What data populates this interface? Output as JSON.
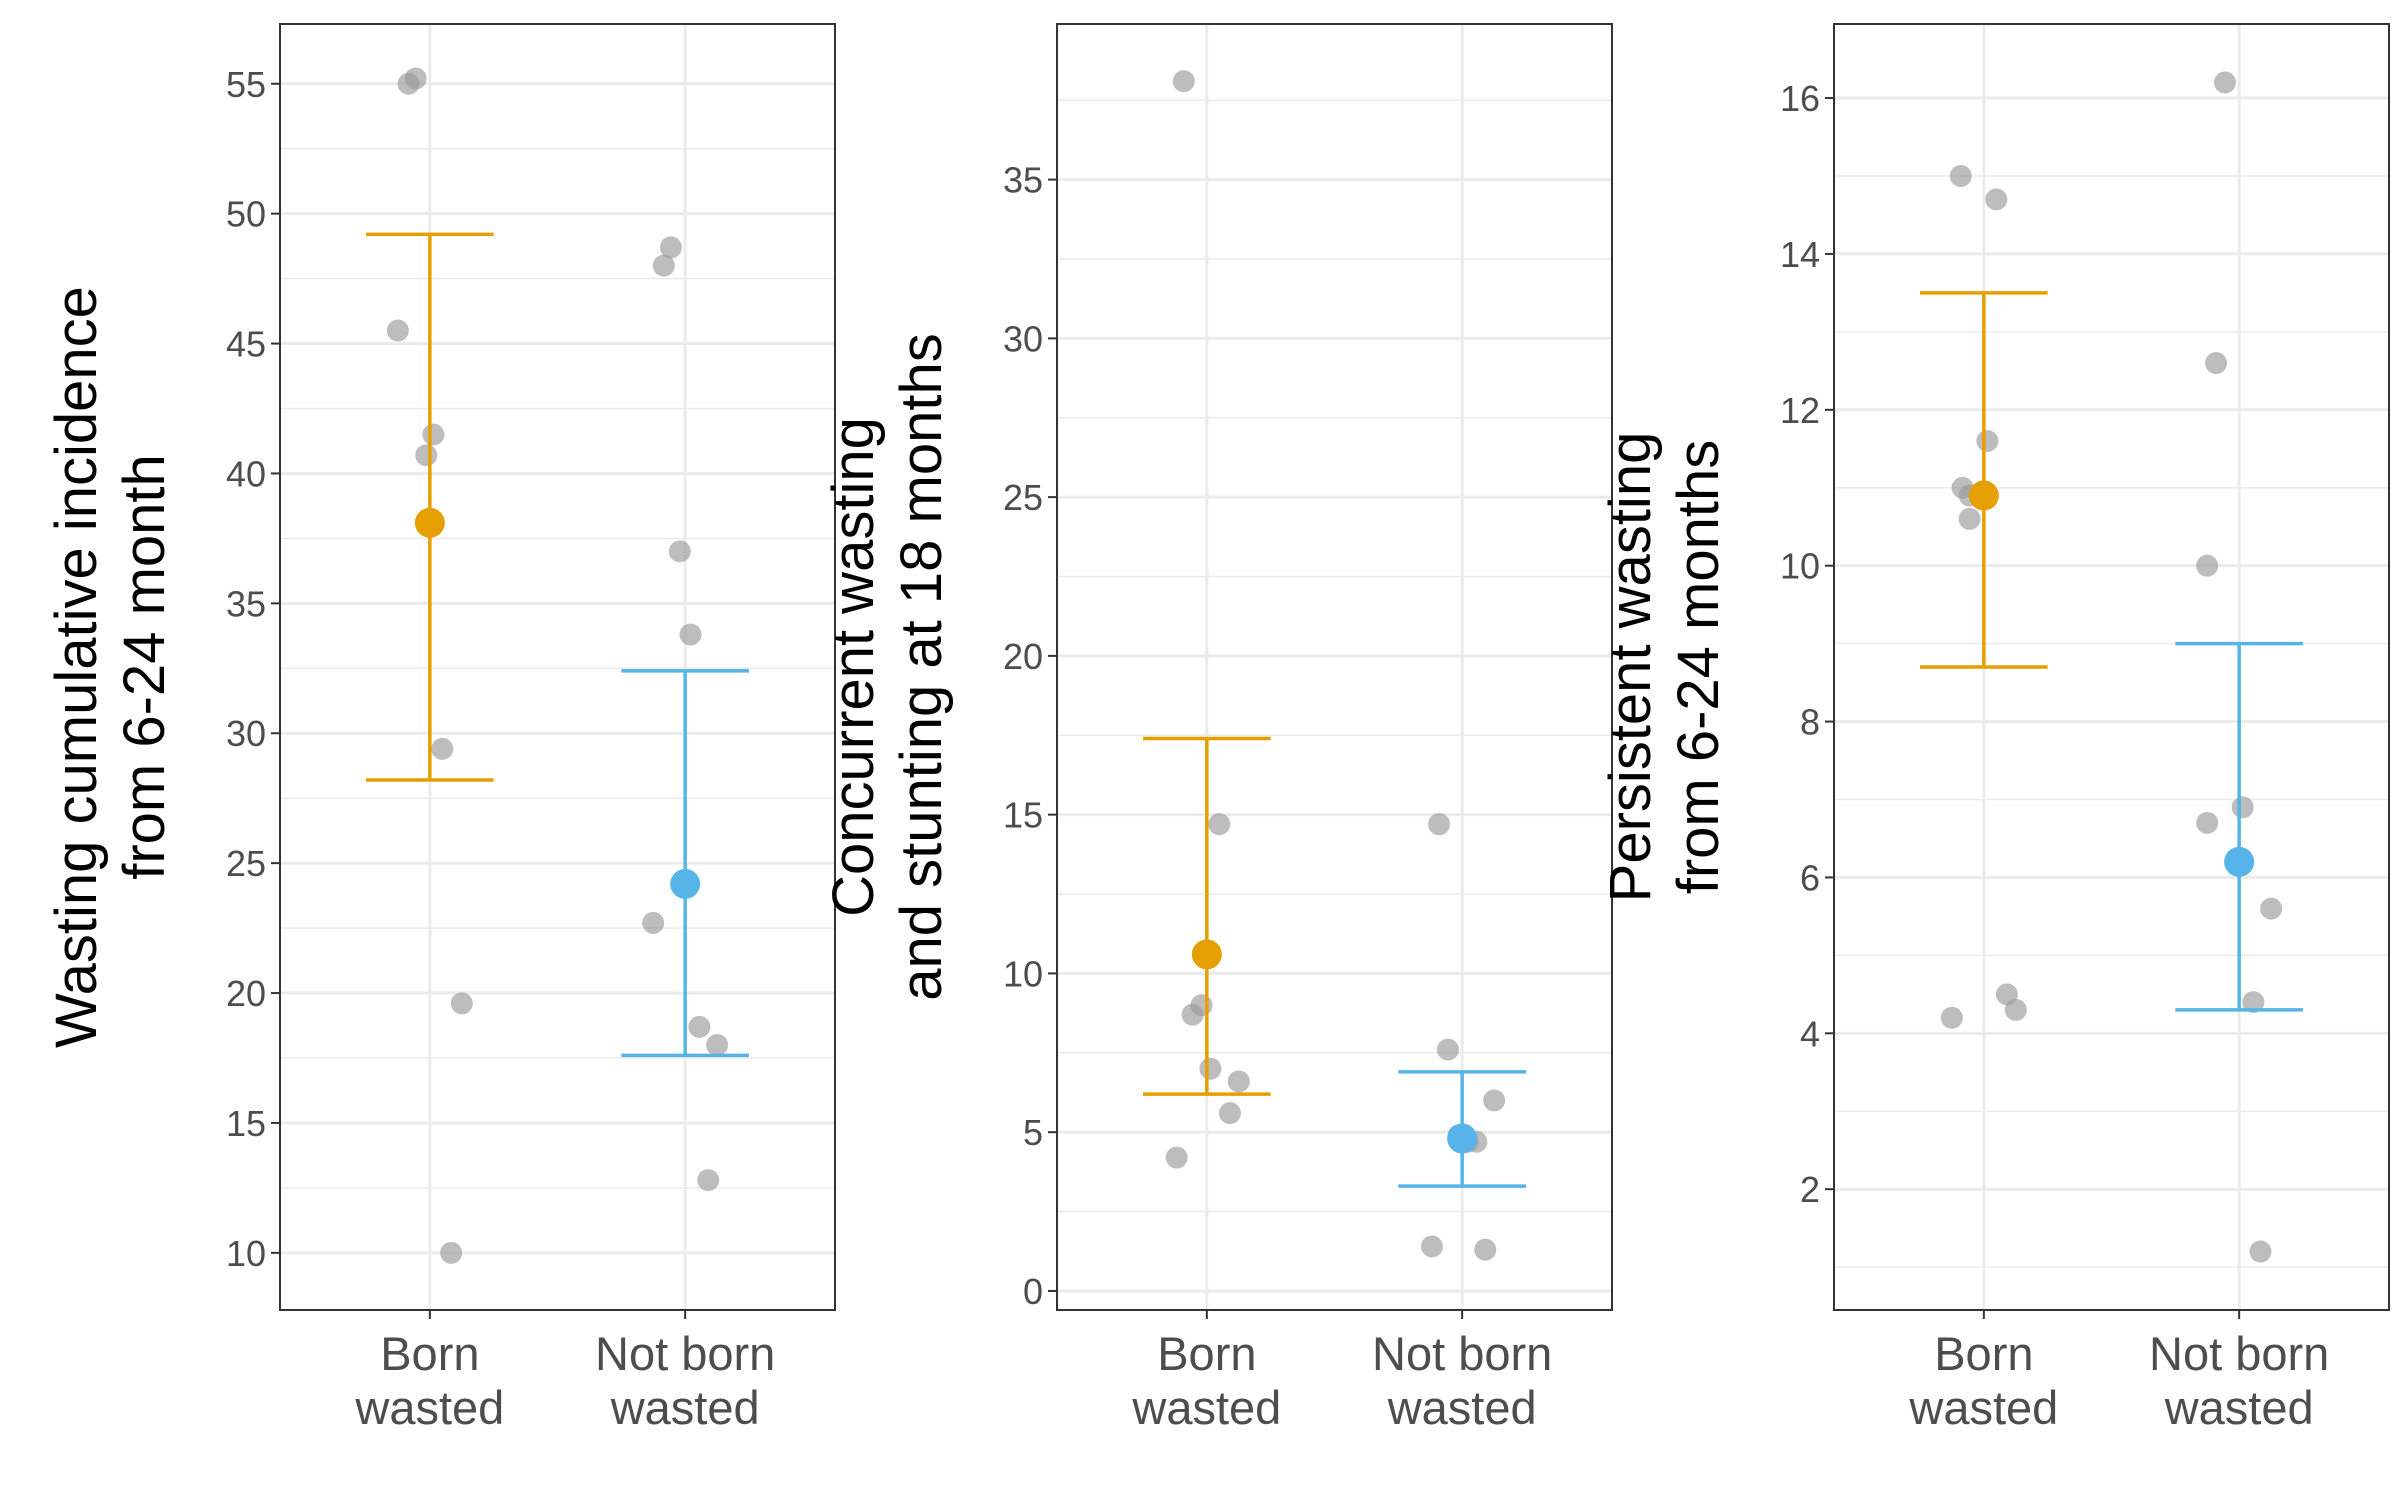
{
  "colors": {
    "born_wasted": "#E69F00",
    "not_born_wasted": "#56B4E9",
    "points": "#999999"
  },
  "chart_data": [
    {
      "type": "scatter",
      "categories": [
        "Born\nwasted",
        "Not born\nwasted"
      ],
      "ylabel": "Wasting cumulative incidence\nfrom 6-24 month",
      "xlabel": "",
      "ylim": [
        7.8,
        57.3
      ],
      "yticks": [
        10,
        15,
        20,
        25,
        30,
        35,
        40,
        45,
        50,
        55
      ],
      "ytick_labels": [
        "10",
        "15",
        "20",
        "25",
        "30",
        "35",
        "40",
        "45",
        "50",
        "55"
      ],
      "grid": true,
      "series": [
        {
          "category": 0,
          "estimate": 38.1,
          "ci_lower": 28.2,
          "ci_upper": 49.2,
          "color": "#E69F00",
          "points": [
            [
              -0.12,
              55.0
            ],
            [
              -0.08,
              55.2
            ],
            [
              -0.18,
              45.5
            ],
            [
              0.02,
              41.5
            ],
            [
              -0.02,
              40.7
            ],
            [
              0.07,
              29.4
            ],
            [
              0.18,
              19.6
            ],
            [
              0.12,
              10.0
            ]
          ]
        },
        {
          "category": 1,
          "estimate": 24.2,
          "ci_lower": 17.6,
          "ci_upper": 32.4,
          "color": "#56B4E9",
          "points": [
            [
              -0.12,
              48.0
            ],
            [
              -0.08,
              48.7
            ],
            [
              -0.03,
              37.0
            ],
            [
              0.03,
              33.8
            ],
            [
              -0.18,
              22.7
            ],
            [
              0.08,
              18.7
            ],
            [
              0.18,
              18.0
            ],
            [
              0.13,
              12.8
            ]
          ]
        }
      ]
    },
    {
      "type": "scatter",
      "categories": [
        "Born\nwasted",
        "Not born\nwasted"
      ],
      "ylabel": "Concurrent wasting\nand stunting at 18 months",
      "xlabel": "",
      "ylim": [
        -0.6,
        39.9
      ],
      "yticks": [
        0,
        5,
        10,
        15,
        20,
        25,
        30,
        35
      ],
      "ytick_labels": [
        "0",
        "5",
        "10",
        "15",
        "20",
        "25",
        "30",
        "35"
      ],
      "grid": true,
      "series": [
        {
          "category": 0,
          "estimate": 10.6,
          "ci_lower": 6.2,
          "ci_upper": 17.4,
          "color": "#E69F00",
          "points": [
            [
              -0.13,
              38.1
            ],
            [
              0.07,
              14.7
            ],
            [
              -0.03,
              9.0
            ],
            [
              -0.08,
              8.7
            ],
            [
              0.18,
              6.6
            ],
            [
              0.02,
              7.0
            ],
            [
              0.13,
              5.6
            ],
            [
              -0.17,
              4.2
            ]
          ]
        },
        {
          "category": 1,
          "estimate": 4.8,
          "ci_lower": 3.3,
          "ci_upper": 6.9,
          "color": "#56B4E9",
          "points": [
            [
              -0.13,
              14.7
            ],
            [
              -0.08,
              7.6
            ],
            [
              0.18,
              6.0
            ],
            [
              0.08,
              4.7
            ],
            [
              -0.02,
              4.9
            ],
            [
              0.03,
              4.7
            ],
            [
              -0.17,
              1.4
            ],
            [
              0.13,
              1.3
            ]
          ]
        }
      ]
    },
    {
      "type": "scatter",
      "categories": [
        "Born\nwasted",
        "Not born\nwasted"
      ],
      "ylabel": "Persistent wasting\nfrom 6-24 months",
      "xlabel": "",
      "ylim": [
        0.45,
        16.95
      ],
      "yticks": [
        2,
        4,
        6,
        8,
        10,
        12,
        14,
        16
      ],
      "ytick_labels": [
        "2",
        "4",
        "6",
        "8",
        "10",
        "12",
        "14",
        "16"
      ],
      "grid": true,
      "series": [
        {
          "category": 0,
          "estimate": 10.9,
          "ci_lower": 8.7,
          "ci_upper": 13.5,
          "color": "#E69F00",
          "points": [
            [
              -0.13,
              15.0
            ],
            [
              0.07,
              14.7
            ],
            [
              0.02,
              11.6
            ],
            [
              -0.12,
              11.0
            ],
            [
              -0.08,
              10.9
            ],
            [
              -0.08,
              10.6
            ],
            [
              0.13,
              4.5
            ],
            [
              0.18,
              4.3
            ],
            [
              -0.18,
              4.2
            ]
          ]
        },
        {
          "category": 1,
          "estimate": 6.2,
          "ci_lower": 4.3,
          "ci_upper": 9.0,
          "color": "#56B4E9",
          "points": [
            [
              -0.08,
              16.2
            ],
            [
              -0.13,
              12.6
            ],
            [
              -0.18,
              10.0
            ],
            [
              0.02,
              6.9
            ],
            [
              -0.18,
              6.7
            ],
            [
              0.18,
              5.6
            ],
            [
              0.08,
              4.4
            ],
            [
              0.12,
              1.2
            ]
          ]
        }
      ]
    }
  ]
}
